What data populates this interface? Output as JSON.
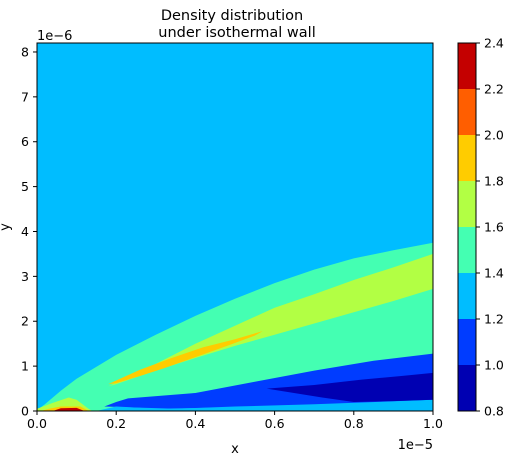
{
  "chart_data": {
    "type": "contour",
    "title_lines": [
      "Density distribution",
      "under isothermal wall"
    ],
    "xlabel": "x",
    "ylabel": "y",
    "x_scale_label": "1e−5",
    "y_scale_label": "1e−6",
    "xlim": [
      0.0,
      1.0
    ],
    "ylim": [
      0.0,
      8.2
    ],
    "xticks": [
      0.0,
      0.2,
      0.4,
      0.6,
      0.8,
      1.0
    ],
    "xtick_labels": [
      "0.0",
      "0.2",
      "0.4",
      "0.6",
      "0.8",
      "1.0"
    ],
    "yticks": [
      0,
      1,
      2,
      3,
      4,
      5,
      6,
      7,
      8
    ],
    "ytick_labels": [
      "0",
      "1",
      "2",
      "3",
      "4",
      "5",
      "6",
      "7",
      "8"
    ],
    "levels": [
      0.8,
      1.0,
      1.2,
      1.4,
      1.6,
      1.8,
      2.0,
      2.2,
      2.4
    ],
    "level_labels": [
      "0.8",
      "1.0",
      "1.2",
      "1.4",
      "1.6",
      "1.8",
      "2.0",
      "2.2",
      "2.4"
    ],
    "level_colors": [
      "#0000b2",
      "#003cff",
      "#00bdff",
      "#44ffb2",
      "#b2ff44",
      "#ffcc00",
      "#ff5e00",
      "#c40000"
    ],
    "background_color": "#00bdff",
    "regions": [
      {
        "level_index": 3,
        "points": [
          [
            0.0,
            0.02
          ],
          [
            0.02,
            0.15
          ],
          [
            0.06,
            0.45
          ],
          [
            0.1,
            0.72
          ],
          [
            0.2,
            1.25
          ],
          [
            0.3,
            1.7
          ],
          [
            0.4,
            2.12
          ],
          [
            0.5,
            2.5
          ],
          [
            0.6,
            2.85
          ],
          [
            0.7,
            3.15
          ],
          [
            0.8,
            3.4
          ],
          [
            0.9,
            3.58
          ],
          [
            1.0,
            3.75
          ],
          [
            1.0,
            0.0
          ],
          [
            0.0,
            0.0
          ]
        ]
      },
      {
        "level_index": 2,
        "points": [
          [
            0.2,
            0.2
          ],
          [
            0.5,
            0.5
          ],
          [
            0.8,
            0.9
          ],
          [
            1.0,
            1.2
          ],
          [
            1.0,
            0.0
          ],
          [
            0.2,
            0.0
          ]
        ]
      },
      {
        "level_index": 4,
        "points": [
          [
            0.0,
            0.05
          ],
          [
            0.04,
            0.18
          ],
          [
            0.08,
            0.3
          ],
          [
            0.1,
            0.25
          ],
          [
            0.13,
            0.05
          ],
          [
            0.14,
            0.0
          ],
          [
            0.0,
            0.0
          ]
        ]
      },
      {
        "level_index": 4,
        "points": [
          [
            0.18,
            0.55
          ],
          [
            0.3,
            1.05
          ],
          [
            0.4,
            1.5
          ],
          [
            0.5,
            1.9
          ],
          [
            0.6,
            2.3
          ],
          [
            0.7,
            2.6
          ],
          [
            0.8,
            2.92
          ],
          [
            0.9,
            3.2
          ],
          [
            1.0,
            3.5
          ],
          [
            1.0,
            2.72
          ],
          [
            0.9,
            2.45
          ],
          [
            0.8,
            2.2
          ],
          [
            0.7,
            1.95
          ],
          [
            0.6,
            1.7
          ],
          [
            0.5,
            1.45
          ],
          [
            0.4,
            1.18
          ],
          [
            0.3,
            0.9
          ],
          [
            0.2,
            0.6
          ]
        ]
      },
      {
        "level_index": 5,
        "points": [
          [
            0.18,
            0.6
          ],
          [
            0.26,
            0.92
          ],
          [
            0.34,
            1.18
          ],
          [
            0.42,
            1.42
          ],
          [
            0.5,
            1.6
          ],
          [
            0.57,
            1.78
          ],
          [
            0.55,
            1.68
          ],
          [
            0.48,
            1.45
          ],
          [
            0.4,
            1.2
          ],
          [
            0.32,
            0.95
          ],
          [
            0.26,
            0.78
          ],
          [
            0.2,
            0.62
          ]
        ]
      },
      {
        "level_index": 5,
        "points": [
          [
            0.01,
            0.0
          ],
          [
            0.03,
            0.05
          ],
          [
            0.06,
            0.1
          ],
          [
            0.11,
            0.1
          ],
          [
            0.13,
            0.0
          ]
        ]
      },
      {
        "level_index": 7,
        "points": [
          [
            0.04,
            0.0
          ],
          [
            0.06,
            0.06
          ],
          [
            0.1,
            0.07
          ],
          [
            0.12,
            0.0
          ]
        ]
      },
      {
        "level_index": 1,
        "points": [
          [
            0.23,
            0.28
          ],
          [
            0.4,
            0.4
          ],
          [
            0.55,
            0.65
          ],
          [
            0.7,
            0.9
          ],
          [
            0.85,
            1.12
          ],
          [
            1.0,
            1.28
          ],
          [
            1.0,
            0.25
          ],
          [
            0.7,
            0.15
          ],
          [
            0.5,
            0.1
          ],
          [
            0.35,
            0.05
          ],
          [
            0.17,
            0.1
          ],
          [
            0.2,
            0.2
          ]
        ]
      },
      {
        "level_index": 0,
        "points": [
          [
            0.58,
            0.5
          ],
          [
            0.7,
            0.58
          ],
          [
            0.82,
            0.7
          ],
          [
            0.92,
            0.78
          ],
          [
            1.0,
            0.85
          ],
          [
            1.0,
            0.25
          ],
          [
            0.9,
            0.22
          ],
          [
            0.8,
            0.2
          ],
          [
            0.72,
            0.3
          ]
        ]
      },
      {
        "level_index": 2,
        "points": [
          [
            0.15,
            0.0
          ],
          [
            0.2,
            0.1
          ],
          [
            0.3,
            0.05
          ],
          [
            0.5,
            0.08
          ],
          [
            0.7,
            0.12
          ],
          [
            1.0,
            0.22
          ],
          [
            1.0,
            0.0
          ]
        ]
      }
    ]
  }
}
